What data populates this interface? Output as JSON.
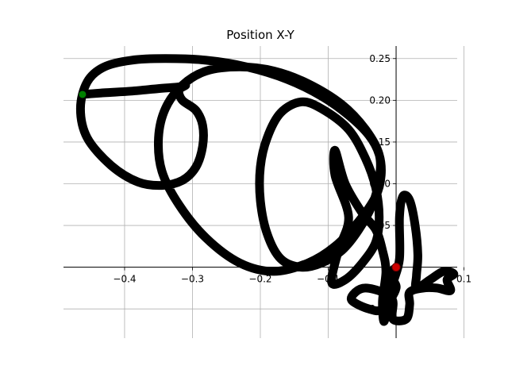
{
  "chart_data": {
    "type": "line",
    "title": "Position X-Y",
    "xlabel": "",
    "ylabel": "",
    "xlim": [
      -0.49,
      0.09
    ],
    "ylim": [
      -0.085,
      0.265
    ],
    "grid": true,
    "spines": "centered at origin",
    "x_ticks": [
      -0.4,
      -0.3,
      -0.2,
      -0.1,
      0.0,
      0.1
    ],
    "x_tick_labels": [
      "−0.4",
      "−0.3",
      "−0.2",
      "−0.1",
      "0",
      "0.1"
    ],
    "y_ticks": [
      -0.05,
      0.0,
      0.05,
      0.1,
      0.15,
      0.2,
      0.25
    ],
    "y_tick_labels": [
      "−0.05",
      "0",
      "0.05",
      "0.10",
      "0.15",
      "0.20",
      "0.25"
    ],
    "line_color": "#000000",
    "start_marker": {
      "x": -0.462,
      "y": 0.207,
      "color": "#008000"
    },
    "end_marker": {
      "x": 0.0,
      "y": 0.0,
      "color": "#cc0000"
    },
    "series": [
      {
        "points": [
          [
            -0.462,
            0.207
          ],
          [
            -0.43,
            0.209
          ],
          [
            -0.39,
            0.211
          ],
          [
            -0.35,
            0.214
          ],
          [
            -0.32,
            0.216
          ],
          [
            -0.31,
            0.218
          ],
          [
            -0.32,
            0.212
          ],
          [
            -0.315,
            0.2
          ],
          [
            -0.295,
            0.188
          ],
          [
            -0.285,
            0.17
          ],
          [
            -0.285,
            0.145
          ],
          [
            -0.295,
            0.12
          ],
          [
            -0.315,
            0.104
          ],
          [
            -0.345,
            0.098
          ],
          [
            -0.38,
            0.102
          ],
          [
            -0.42,
            0.122
          ],
          [
            -0.455,
            0.155
          ],
          [
            -0.465,
            0.19
          ],
          [
            -0.455,
            0.222
          ],
          [
            -0.43,
            0.24
          ],
          [
            -0.39,
            0.248
          ],
          [
            -0.34,
            0.25
          ],
          [
            -0.28,
            0.248
          ],
          [
            -0.22,
            0.24
          ],
          [
            -0.16,
            0.225
          ],
          [
            -0.11,
            0.205
          ],
          [
            -0.07,
            0.182
          ],
          [
            -0.04,
            0.158
          ],
          [
            -0.025,
            0.135
          ],
          [
            -0.022,
            0.11
          ],
          [
            -0.03,
            0.085
          ],
          [
            -0.055,
            0.055
          ],
          [
            -0.09,
            0.025
          ],
          [
            -0.13,
            0.005
          ],
          [
            -0.18,
            -0.005
          ],
          [
            -0.23,
            0.005
          ],
          [
            -0.28,
            0.035
          ],
          [
            -0.32,
            0.075
          ],
          [
            -0.345,
            0.115
          ],
          [
            -0.35,
            0.155
          ],
          [
            -0.34,
            0.19
          ],
          [
            -0.315,
            0.218
          ],
          [
            -0.28,
            0.235
          ],
          [
            -0.23,
            0.24
          ],
          [
            -0.18,
            0.235
          ],
          [
            -0.13,
            0.22
          ],
          [
            -0.08,
            0.195
          ],
          [
            -0.045,
            0.165
          ],
          [
            -0.025,
            0.135
          ],
          [
            -0.025,
            0.105
          ],
          [
            -0.035,
            0.075
          ],
          [
            -0.055,
            0.045
          ],
          [
            -0.08,
            0.02
          ],
          [
            -0.11,
            0.005
          ],
          [
            -0.14,
            0.0
          ],
          [
            -0.17,
            0.01
          ],
          [
            -0.19,
            0.04
          ],
          [
            -0.2,
            0.08
          ],
          [
            -0.2,
            0.12
          ],
          [
            -0.19,
            0.155
          ],
          [
            -0.17,
            0.185
          ],
          [
            -0.14,
            0.198
          ],
          [
            -0.11,
            0.19
          ],
          [
            -0.07,
            0.165
          ],
          [
            -0.045,
            0.13
          ],
          [
            -0.03,
            0.095
          ],
          [
            -0.025,
            0.06
          ],
          [
            -0.03,
            0.03
          ],
          [
            -0.05,
            0.005
          ],
          [
            -0.075,
            -0.015
          ],
          [
            -0.095,
            -0.018
          ],
          [
            -0.085,
            0.02
          ],
          [
            -0.07,
            0.06
          ],
          [
            -0.09,
            0.11
          ],
          [
            -0.09,
            0.14
          ],
          [
            -0.075,
            0.1
          ],
          [
            -0.05,
            0.065
          ],
          [
            -0.03,
            0.045
          ],
          [
            -0.02,
            0.02
          ],
          [
            -0.015,
            -0.005
          ],
          [
            -0.02,
            -0.04
          ],
          [
            -0.018,
            -0.065
          ],
          [
            -0.012,
            -0.045
          ],
          [
            -0.005,
            -0.02
          ],
          [
            0.005,
            0.01
          ],
          [
            0.005,
            0.06
          ],
          [
            0.01,
            0.085
          ],
          [
            0.02,
            0.08
          ],
          [
            0.028,
            0.05
          ],
          [
            0.032,
            0.015
          ],
          [
            0.03,
            -0.01
          ],
          [
            0.03,
            -0.025
          ],
          [
            0.05,
            -0.015
          ],
          [
            0.07,
            -0.005
          ],
          [
            0.085,
            -0.008
          ],
          [
            0.075,
            -0.015
          ],
          [
            0.08,
            -0.028
          ],
          [
            0.06,
            -0.025
          ],
          [
            0.04,
            -0.025
          ],
          [
            0.02,
            -0.03
          ],
          [
            0.02,
            -0.045
          ],
          [
            0.015,
            -0.062
          ],
          [
            -0.005,
            -0.062
          ],
          [
            -0.005,
            -0.04
          ],
          [
            -0.02,
            -0.03
          ],
          [
            -0.045,
            -0.025
          ],
          [
            -0.06,
            -0.03
          ],
          [
            -0.065,
            -0.04
          ],
          [
            -0.04,
            -0.05
          ],
          [
            -0.02,
            -0.05
          ],
          [
            0.0,
            -0.025
          ],
          [
            -0.01,
            -0.01
          ],
          [
            0.0,
            0.0
          ]
        ]
      }
    ]
  }
}
